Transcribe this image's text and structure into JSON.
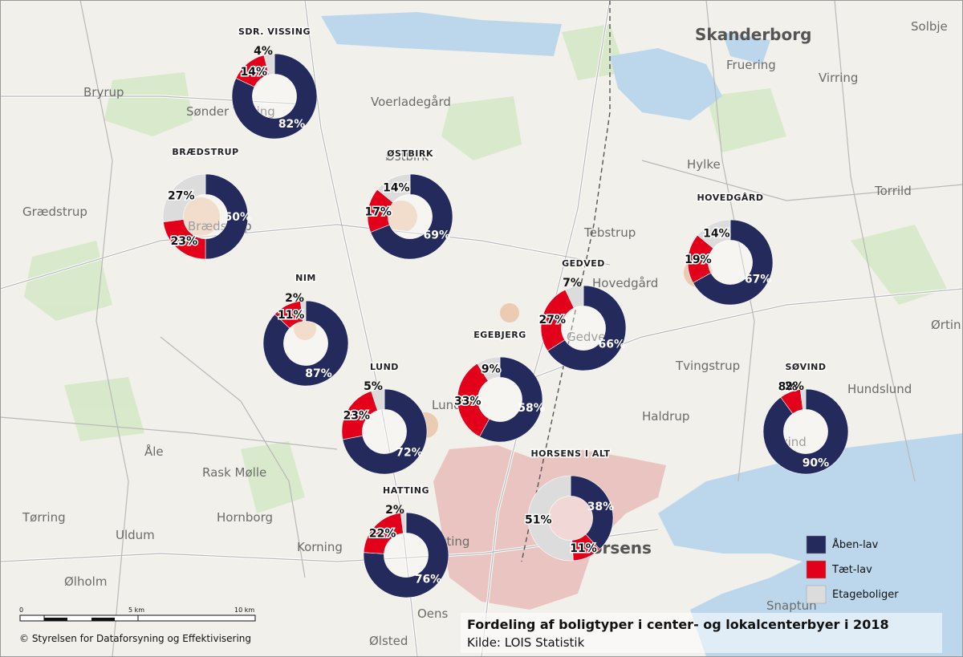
{
  "map": {
    "title": "Fordeling af boligtyper i center- og lokalcenterbyer i 2018",
    "source": "Kilde: LOIS Statistik",
    "copyright": "© Styrelsen for Dataforsyning og Effektivisering",
    "scalebar": {
      "ticks": [
        "0",
        "5 km",
        "10 km"
      ]
    },
    "colors": {
      "aaben_lav": "#252a5c",
      "taet_lav": "#e3001b",
      "etageboliger": "#dcdcdc"
    },
    "legend": [
      {
        "label": "Åben-lav",
        "color": "#252a5c"
      },
      {
        "label": "Tæt-lav",
        "color": "#e3001b"
      },
      {
        "label": "Etageboliger",
        "color": "#dcdcdc"
      }
    ],
    "place_names": [
      "Skanderborg",
      "Solbje",
      "Fruering",
      "Virring",
      "Bryrup",
      "Sønder Vissing",
      "Voerladegård",
      "Hylke",
      "Torrild",
      "Grædstrup",
      "Brædstrup",
      "Tebstrup",
      "Hovedgård",
      "Gedved",
      "Ørtin",
      "Tvingstrup",
      "Hundslund",
      "Haldrup",
      "Søvind",
      "Lund",
      "Åle",
      "Rask Mølle",
      "Tørring",
      "Hornborg",
      "Uldum",
      "Korning",
      "Hatting",
      "Horsens",
      "Ølholm",
      "Oens",
      "Ølsted",
      "Snaptun",
      "Østbirk"
    ],
    "towns": [
      {
        "name": "SDR. VISSING",
        "aaben_lav": "82%",
        "taet_lav": "14%",
        "etageboliger": "4%"
      },
      {
        "name": "BRÆDSTRUP",
        "aaben_lav": "50%",
        "taet_lav": "23%",
        "etageboliger": "27%"
      },
      {
        "name": "ØSTBIRK",
        "aaben_lav": "69%",
        "taet_lav": "17%",
        "etageboliger": "14%"
      },
      {
        "name": "HOVEDGÅRD",
        "aaben_lav": "67%",
        "taet_lav": "19%",
        "etageboliger": "14%"
      },
      {
        "name": "NIM",
        "aaben_lav": "87%",
        "taet_lav": "11%",
        "etageboliger": "2%"
      },
      {
        "name": "GEDVED",
        "aaben_lav": "66%",
        "taet_lav": "27%",
        "etageboliger": "7%"
      },
      {
        "name": "EGEBJERG",
        "aaben_lav": "58%",
        "taet_lav": "33%",
        "etageboliger": "9%"
      },
      {
        "name": "LUND",
        "aaben_lav": "72%",
        "taet_lav": "23%",
        "etageboliger": "5%"
      },
      {
        "name": "SØVIND",
        "aaben_lav": "90%",
        "taet_lav": "8%",
        "etageboliger": "2%"
      },
      {
        "name": "HORSENS I ALT",
        "aaben_lav": "38%",
        "taet_lav": "11%",
        "etageboliger": "51%"
      },
      {
        "name": "HATTING",
        "aaben_lav": "76%",
        "taet_lav": "22%",
        "etageboliger": "2%"
      }
    ]
  }
}
